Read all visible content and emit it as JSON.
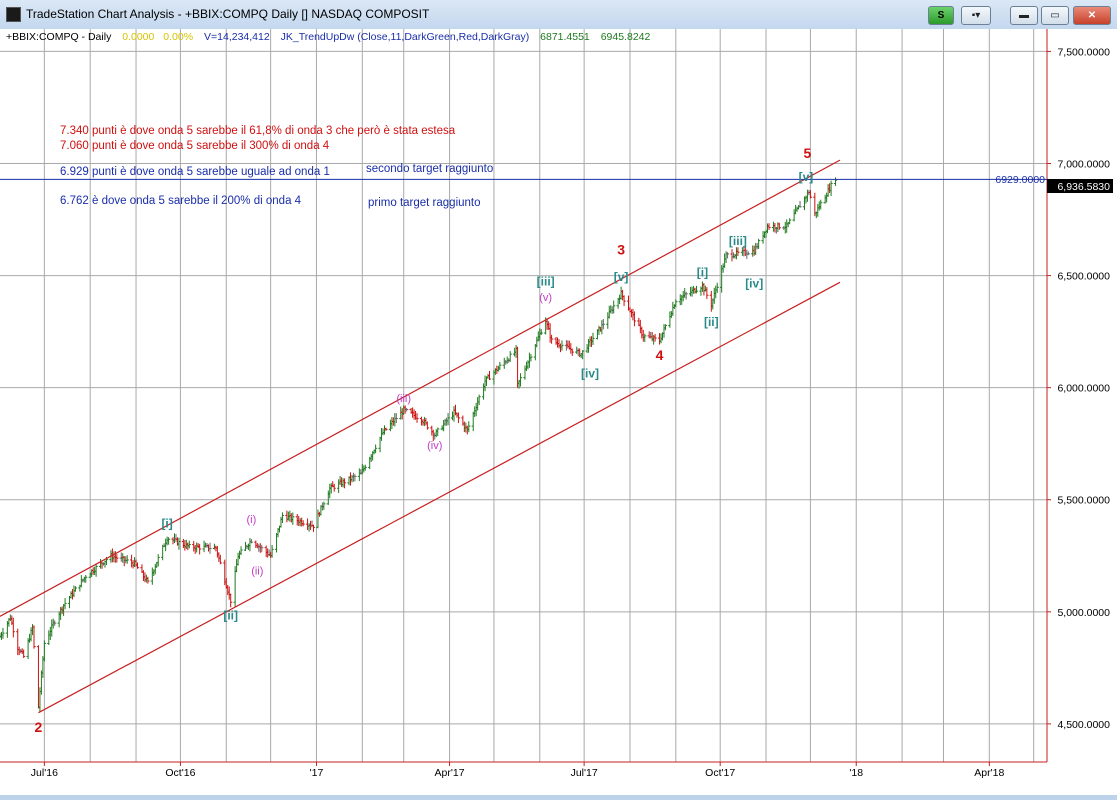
{
  "window": {
    "title": "TradeStation Chart Analysis - +BBIX:COMPQ Daily [] NASDAQ COMPOSIT",
    "buttons": {
      "s_label": "S",
      "menu_label": "▪▾",
      "minimize_label": "▬",
      "maximize_label": "▭",
      "close_label": "✕"
    }
  },
  "legend": {
    "symbol": "+BBIX:COMPQ - Daily",
    "change": "0.0000",
    "change_pct": "0.00%",
    "volume": "V=14,234,412",
    "indicator": "JK_TrendUpDw",
    "indicator_params": "(Close,11,DarkGreen,Red,DarkGray)",
    "low": "6871.4551",
    "high": "6945.8242"
  },
  "colors": {
    "up_bar": "#1e7a1e",
    "down_bar": "#cc1010",
    "flat_bar": "#666666",
    "channel": "#c81e1e",
    "hline": "#1a2ea8",
    "grid": "#a9a9a9",
    "wave_major": "#d01010",
    "wave_minor": "#2a8a8a",
    "wave_sub": "#c43cc4"
  },
  "annotations": [
    {
      "text": "7.340 punti è dove onda 5 sarebbe il 61,8% di onda 3 che però è stata estesa",
      "color": "#d01010"
    },
    {
      "text": "7.060 punti è dove onda 5 sarebbe il 300% di onda 4",
      "color": "#d01010"
    },
    {
      "text": "6.929 punti è dove onda 5 sarebbe uguale ad onda 1",
      "color": "#1a2ea8"
    },
    {
      "text": "secondo target raggiunto",
      "color": "#1a2ea8"
    },
    {
      "text": "6.762 è dove onda 5 sarebbe il 200% di onda 4",
      "color": "#1a2ea8"
    },
    {
      "text": "primo target raggiunto",
      "color": "#1a2ea8"
    }
  ],
  "hline_label": "6929.0000",
  "last_price_label": "6,936.5830",
  "chart_data": {
    "type": "bar",
    "subtype": "ohlc",
    "symbol": "+BBIX:COMPQ",
    "interval": "Daily",
    "x_range": [
      "2016-06-01",
      "2018-05-10"
    ],
    "x_ticks": [
      {
        "date": "2016-07-01",
        "label": "Jul'16"
      },
      {
        "date": "2016-10-01",
        "label": "Oct'16"
      },
      {
        "date": "2017-01-01",
        "label": "'17"
      },
      {
        "date": "2017-04-01",
        "label": "Apr'17"
      },
      {
        "date": "2017-07-01",
        "label": "Jul'17"
      },
      {
        "date": "2017-10-01",
        "label": "Oct'17"
      },
      {
        "date": "2018-01-01",
        "label": "'18"
      },
      {
        "date": "2018-04-01",
        "label": "Apr'18"
      }
    ],
    "y_range": [
      4330,
      7600
    ],
    "y_ticks": [
      {
        "value": 4500,
        "label": "4,500.0000"
      },
      {
        "value": 5000,
        "label": "5,000.0000"
      },
      {
        "value": 5500,
        "label": "5,500.0000"
      },
      {
        "value": 6000,
        "label": "6,000.0000"
      },
      {
        "value": 6500,
        "label": "6,500.0000"
      },
      {
        "value": 7000,
        "label": "7,000.0000"
      },
      {
        "value": 7500,
        "label": "7,500.0000"
      }
    ],
    "grid": true,
    "price_path": [
      [
        "2016-06-01",
        4890
      ],
      [
        "2016-06-08",
        4975
      ],
      [
        "2016-06-13",
        4840
      ],
      [
        "2016-06-17",
        4800
      ],
      [
        "2016-06-23",
        4930
      ],
      [
        "2016-06-27",
        4575
      ],
      [
        "2016-07-01",
        4860
      ],
      [
        "2016-07-08",
        4960
      ],
      [
        "2016-07-14",
        5030
      ],
      [
        "2016-07-29",
        5160
      ],
      [
        "2016-08-15",
        5250
      ],
      [
        "2016-08-31",
        5215
      ],
      [
        "2016-09-09",
        5130
      ],
      [
        "2016-09-22",
        5330
      ],
      [
        "2016-10-07",
        5290
      ],
      [
        "2016-10-25",
        5285
      ],
      [
        "2016-11-04",
        5050
      ],
      [
        "2016-11-09",
        5250
      ],
      [
        "2016-11-18",
        5320
      ],
      [
        "2016-12-01",
        5250
      ],
      [
        "2016-12-09",
        5430
      ],
      [
        "2016-12-30",
        5385
      ],
      [
        "2017-01-10",
        5550
      ],
      [
        "2017-01-31",
        5615
      ],
      [
        "2017-02-15",
        5800
      ],
      [
        "2017-03-01",
        5900
      ],
      [
        "2017-03-13",
        5860
      ],
      [
        "2017-03-22",
        5790
      ],
      [
        "2017-04-04",
        5890
      ],
      [
        "2017-04-13",
        5810
      ],
      [
        "2017-04-25",
        6030
      ],
      [
        "2017-05-16",
        6165
      ],
      [
        "2017-05-17",
        6010
      ],
      [
        "2017-06-05",
        6300
      ],
      [
        "2017-06-09",
        6210
      ],
      [
        "2017-06-29",
        6150
      ],
      [
        "2017-07-13",
        6275
      ],
      [
        "2017-07-26",
        6420
      ],
      [
        "2017-08-10",
        6230
      ],
      [
        "2017-08-21",
        6210
      ],
      [
        "2017-09-01",
        6390
      ],
      [
        "2017-09-19",
        6455
      ],
      [
        "2017-09-25",
        6370
      ],
      [
        "2017-10-05",
        6590
      ],
      [
        "2017-10-24",
        6610
      ],
      [
        "2017-11-02",
        6720
      ],
      [
        "2017-11-15",
        6720
      ],
      [
        "2017-11-30",
        6875
      ],
      [
        "2017-12-04",
        6775
      ],
      [
        "2017-12-18",
        6936
      ]
    ],
    "channel_lines": [
      {
        "name": "upper",
        "points": [
          [
            "2016-06-01",
            4980
          ],
          [
            "2017-12-21",
            7015
          ]
        ]
      },
      {
        "name": "lower",
        "points": [
          [
            "2016-06-27",
            4550
          ],
          [
            "2017-12-21",
            6470
          ]
        ]
      }
    ],
    "horizontal_lines": [
      {
        "value": 6929,
        "label": "6929.0000"
      }
    ],
    "last_price": 6936.583,
    "wave_labels": [
      {
        "text": "2",
        "level": "major",
        "date": "2016-06-27",
        "price": 4480,
        "pos": "below"
      },
      {
        "text": "[i]",
        "level": "minor",
        "date": "2016-09-22",
        "price": 5390,
        "pos": "above"
      },
      {
        "text": "[ii]",
        "level": "minor",
        "date": "2016-11-04",
        "price": 4980,
        "pos": "below"
      },
      {
        "text": "(i)",
        "level": "sub",
        "date": "2016-11-18",
        "price": 5410,
        "pos": "above"
      },
      {
        "text": "(ii)",
        "level": "sub",
        "date": "2016-11-22",
        "price": 5180,
        "pos": "below"
      },
      {
        "text": "(iii)",
        "level": "sub",
        "date": "2017-03-01",
        "price": 5950,
        "pos": "above"
      },
      {
        "text": "(iv)",
        "level": "sub",
        "date": "2017-03-22",
        "price": 5740,
        "pos": "below"
      },
      {
        "text": "[iii]",
        "level": "minor",
        "date": "2017-06-05",
        "price": 6470,
        "pos": "above"
      },
      {
        "text": "(v)",
        "level": "sub",
        "date": "2017-06-05",
        "price": 6400,
        "pos": "above"
      },
      {
        "text": "[iv]",
        "level": "minor",
        "date": "2017-07-05",
        "price": 6060,
        "pos": "below"
      },
      {
        "text": "3",
        "level": "major",
        "date": "2017-07-26",
        "price": 6610,
        "pos": "above"
      },
      {
        "text": "[v]",
        "level": "minor",
        "date": "2017-07-26",
        "price": 6490,
        "pos": "above"
      },
      {
        "text": "4",
        "level": "major",
        "date": "2017-08-21",
        "price": 6140,
        "pos": "below"
      },
      {
        "text": "[i]",
        "level": "minor",
        "date": "2017-09-19",
        "price": 6510,
        "pos": "above"
      },
      {
        "text": "[ii]",
        "level": "minor",
        "date": "2017-09-25",
        "price": 6290,
        "pos": "below"
      },
      {
        "text": "[iii]",
        "level": "minor",
        "date": "2017-10-13",
        "price": 6650,
        "pos": "above"
      },
      {
        "text": "[iv]",
        "level": "minor",
        "date": "2017-10-24",
        "price": 6460,
        "pos": "below"
      },
      {
        "text": "[v]",
        "level": "minor",
        "date": "2017-11-28",
        "price": 6935,
        "pos": "above"
      },
      {
        "text": "5",
        "level": "major",
        "date": "2017-11-29",
        "price": 7040,
        "pos": "above"
      }
    ]
  }
}
